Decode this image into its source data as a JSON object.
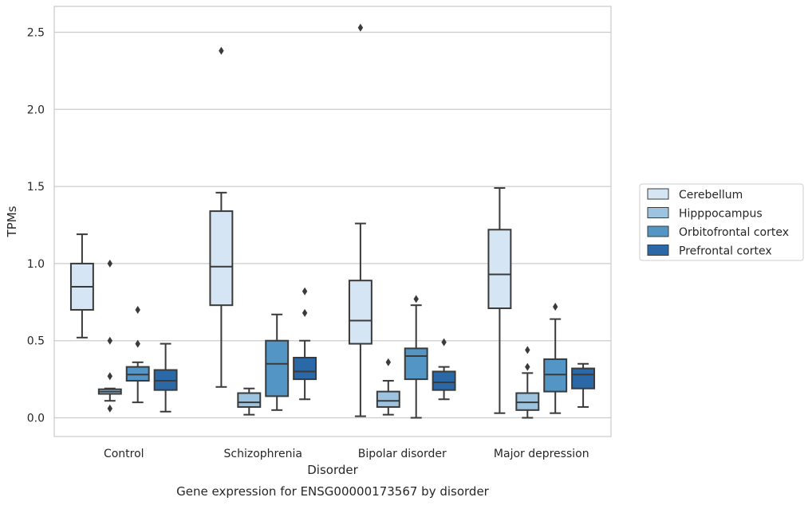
{
  "chart_data": {
    "type": "boxplot",
    "title": "Gene expression for ENSG00000173567 by disorder",
    "xlabel": "Disorder",
    "ylabel": "TPMs",
    "ylim": [
      -0.12,
      2.66
    ],
    "yticks": [
      0.0,
      0.5,
      1.0,
      1.5,
      2.0,
      2.5
    ],
    "ytick_labels": [
      "0.0",
      "0.5",
      "1.0",
      "1.5",
      "2.0",
      "2.5"
    ],
    "grid": "horizontal",
    "legend_position": "right",
    "categories": [
      "Control",
      "Schizophrenia",
      "Bipolar disorder",
      "Major depression"
    ],
    "series": [
      {
        "name": "Cerebellum",
        "color": "#d6e5f4",
        "boxes": [
          {
            "whislo": 0.52,
            "q1": 0.7,
            "med": 0.85,
            "q3": 1.0,
            "whishi": 1.19,
            "fliers": []
          },
          {
            "whislo": 0.2,
            "q1": 0.73,
            "med": 0.98,
            "q3": 1.34,
            "whishi": 1.46,
            "fliers": [
              2.38
            ]
          },
          {
            "whislo": 0.01,
            "q1": 0.48,
            "med": 0.63,
            "q3": 0.89,
            "whishi": 1.26,
            "fliers": [
              2.53
            ]
          },
          {
            "whislo": 0.03,
            "q1": 0.71,
            "med": 0.93,
            "q3": 1.22,
            "whishi": 1.49,
            "fliers": []
          }
        ]
      },
      {
        "name": "Hipppocampus",
        "color": "#9cc4e0",
        "boxes": [
          {
            "whislo": 0.11,
            "q1": 0.155,
            "med": 0.17,
            "q3": 0.185,
            "whishi": 0.19,
            "fliers": [
              1.0,
              0.5,
              0.27,
              0.06
            ]
          },
          {
            "whislo": 0.02,
            "q1": 0.07,
            "med": 0.1,
            "q3": 0.16,
            "whishi": 0.19,
            "fliers": []
          },
          {
            "whislo": 0.02,
            "q1": 0.07,
            "med": 0.11,
            "q3": 0.17,
            "whishi": 0.24,
            "fliers": [
              0.36
            ]
          },
          {
            "whislo": 0.0,
            "q1": 0.05,
            "med": 0.1,
            "q3": 0.16,
            "whishi": 0.29,
            "fliers": [
              0.44,
              0.33
            ]
          }
        ]
      },
      {
        "name": "Orbitofrontal cortex",
        "color": "#5396c6",
        "boxes": [
          {
            "whislo": 0.1,
            "q1": 0.24,
            "med": 0.28,
            "q3": 0.33,
            "whishi": 0.36,
            "fliers": [
              0.7,
              0.48
            ]
          },
          {
            "whislo": 0.05,
            "q1": 0.14,
            "med": 0.35,
            "q3": 0.5,
            "whishi": 0.67,
            "fliers": []
          },
          {
            "whislo": 0.0,
            "q1": 0.25,
            "med": 0.4,
            "q3": 0.45,
            "whishi": 0.73,
            "fliers": [
              0.77
            ]
          },
          {
            "whislo": 0.03,
            "q1": 0.17,
            "med": 0.28,
            "q3": 0.38,
            "whishi": 0.64,
            "fliers": [
              0.72
            ]
          }
        ]
      },
      {
        "name": "Prefrontal cortex",
        "color": "#2b68a7",
        "boxes": [
          {
            "whislo": 0.04,
            "q1": 0.18,
            "med": 0.24,
            "q3": 0.31,
            "whishi": 0.48,
            "fliers": []
          },
          {
            "whislo": 0.12,
            "q1": 0.25,
            "med": 0.3,
            "q3": 0.39,
            "whishi": 0.5,
            "fliers": [
              0.82,
              0.68
            ]
          },
          {
            "whislo": 0.12,
            "q1": 0.18,
            "med": 0.23,
            "q3": 0.3,
            "whishi": 0.33,
            "fliers": [
              0.49
            ]
          },
          {
            "whislo": 0.07,
            "q1": 0.19,
            "med": 0.28,
            "q3": 0.32,
            "whishi": 0.35,
            "fliers": []
          }
        ]
      }
    ]
  }
}
